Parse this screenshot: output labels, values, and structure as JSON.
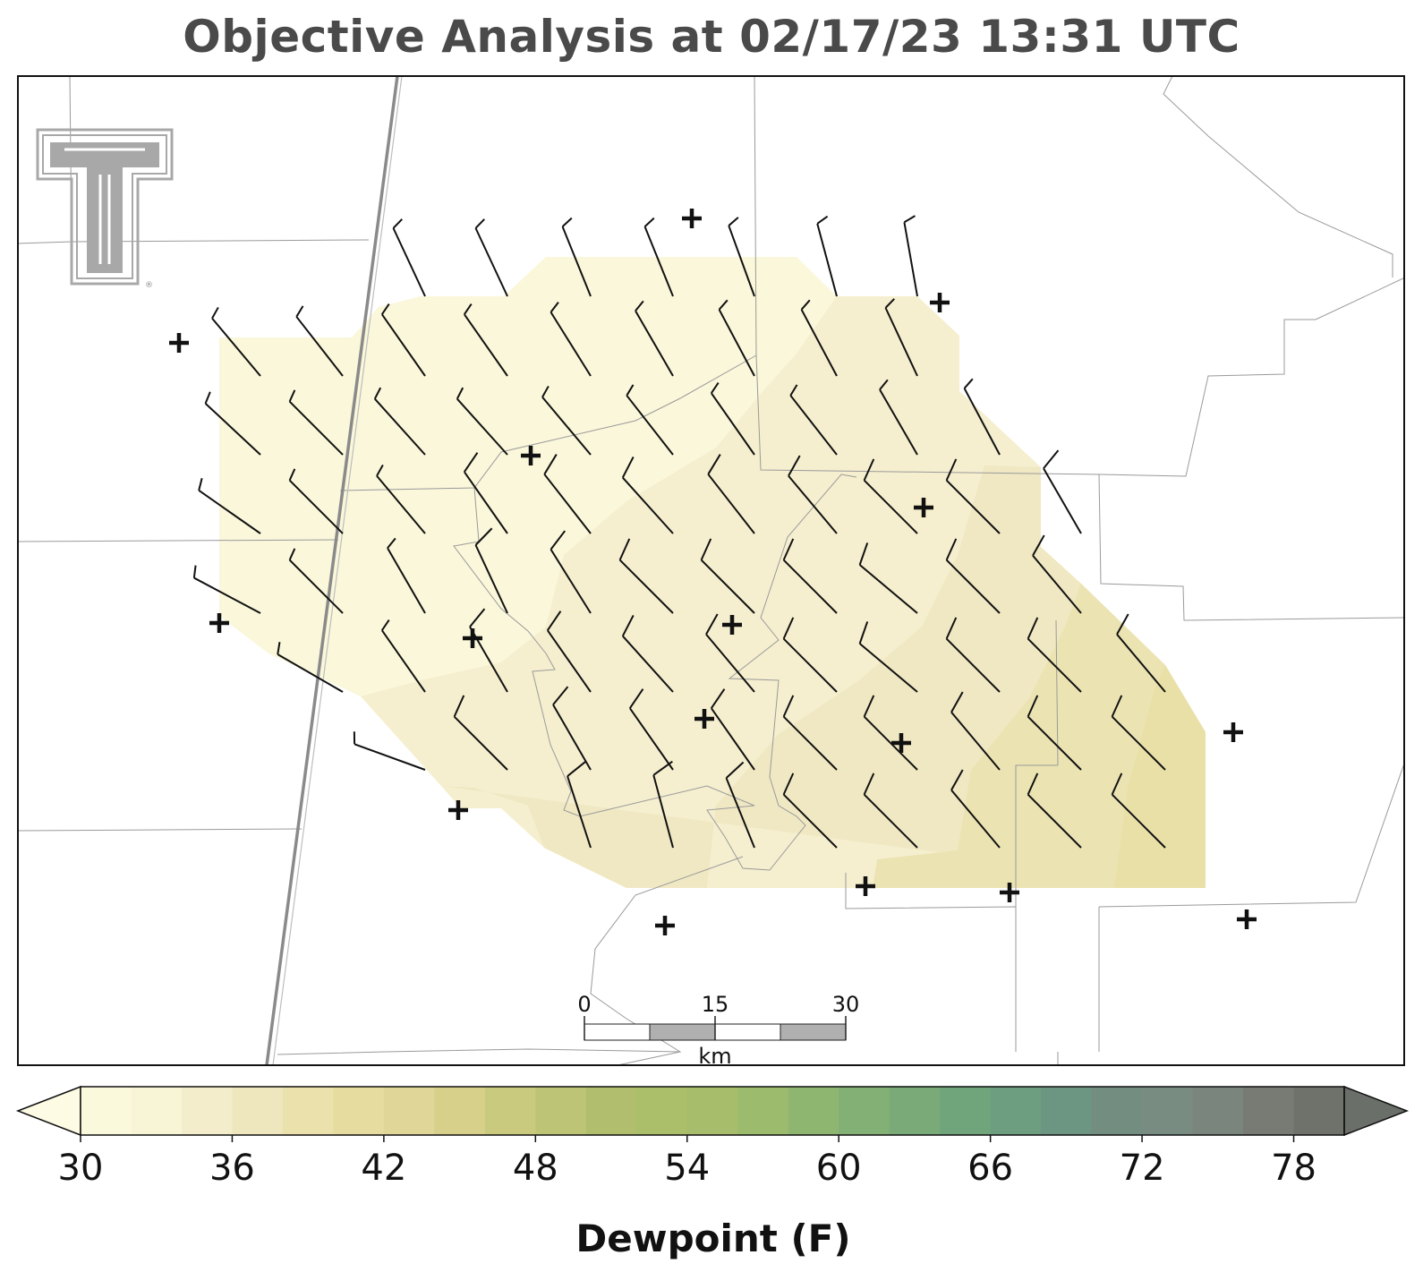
{
  "title": "Objective Analysis at 02/17/23 13:31 UTC",
  "colorbar": {
    "label": "Dewpoint (F)",
    "ticks": [
      30,
      36,
      42,
      48,
      54,
      60,
      66,
      72,
      78
    ],
    "min": 30,
    "max": 80,
    "step": 2,
    "extend": "both",
    "colors": [
      "#fbf9dc",
      "#f8f4d6",
      "#f3edcb",
      "#eee6bd",
      "#ebe1ac",
      "#e6dc9f",
      "#e0d697",
      "#d6d08b",
      "#c9ca7e",
      "#bdc476",
      "#b0be6e",
      "#abbf6b",
      "#a7bd6b",
      "#9cbb6d",
      "#8fb670",
      "#83b075",
      "#79aa77",
      "#70a47a",
      "#6d9e7f",
      "#6c9582",
      "#738e80",
      "#798c82",
      "#7a857e",
      "#777b73",
      "#6f726b"
    ],
    "under_color": "#fdfbe4",
    "over_color": "#6a6f69"
  },
  "scale_bar": {
    "labels": [
      "0",
      "15",
      "30"
    ],
    "unit": "km"
  },
  "logo": {
    "name": "texas-tech-double-t-logo",
    "registered_mark": "®"
  },
  "stations": 17,
  "wind_barbs": {
    "direction_description": "mostly from north-northwest to west-northwest; stronger northerly flow in south-central area",
    "speed_range_kt": [
      5,
      15
    ]
  }
}
